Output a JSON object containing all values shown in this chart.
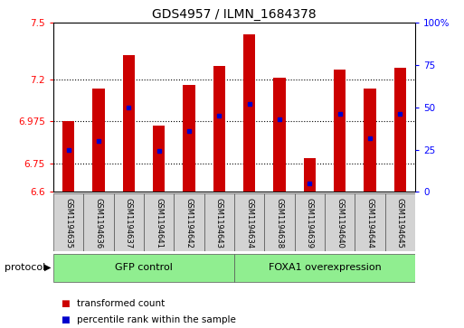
{
  "title": "GDS4957 / ILMN_1684378",
  "samples": [
    "GSM1194635",
    "GSM1194636",
    "GSM1194637",
    "GSM1194641",
    "GSM1194642",
    "GSM1194643",
    "GSM1194634",
    "GSM1194638",
    "GSM1194639",
    "GSM1194640",
    "GSM1194644",
    "GSM1194645"
  ],
  "transformed_counts": [
    6.975,
    7.15,
    7.33,
    6.955,
    7.17,
    7.27,
    7.44,
    7.21,
    6.78,
    7.25,
    7.15,
    7.26
  ],
  "percentile_ranks": [
    25,
    30,
    50,
    24,
    36,
    45,
    52,
    43,
    5,
    46,
    32,
    46
  ],
  "ylim_left": [
    6.6,
    7.5
  ],
  "yticks_left": [
    6.6,
    6.75,
    6.975,
    7.2,
    7.5
  ],
  "ytick_labels_left": [
    "6.6",
    "6.75",
    "6.975",
    "7.2",
    "7.5"
  ],
  "ylim_right": [
    0,
    100
  ],
  "yticks_right": [
    0,
    25,
    50,
    75,
    100
  ],
  "ytick_labels_right": [
    "0",
    "25",
    "50",
    "75",
    "100%"
  ],
  "bar_color": "#cc0000",
  "dot_color": "#0000cc",
  "bar_bottom": 6.6,
  "group1_label": "GFP control",
  "group2_label": "FOXA1 overexpression",
  "group1_indices": [
    0,
    1,
    2,
    3,
    4,
    5
  ],
  "group2_indices": [
    6,
    7,
    8,
    9,
    10,
    11
  ],
  "group_bg_color": "#90ee90",
  "sample_bg_color": "#d3d3d3",
  "protocol_label": "protocol",
  "legend_items": [
    "transformed count",
    "percentile rank within the sample"
  ],
  "legend_colors": [
    "#cc0000",
    "#0000cc"
  ],
  "bar_width": 0.4,
  "title_fontsize": 10,
  "tick_fontsize": 7.5,
  "sample_fontsize": 6,
  "group_fontsize": 8,
  "legend_fontsize": 7.5
}
